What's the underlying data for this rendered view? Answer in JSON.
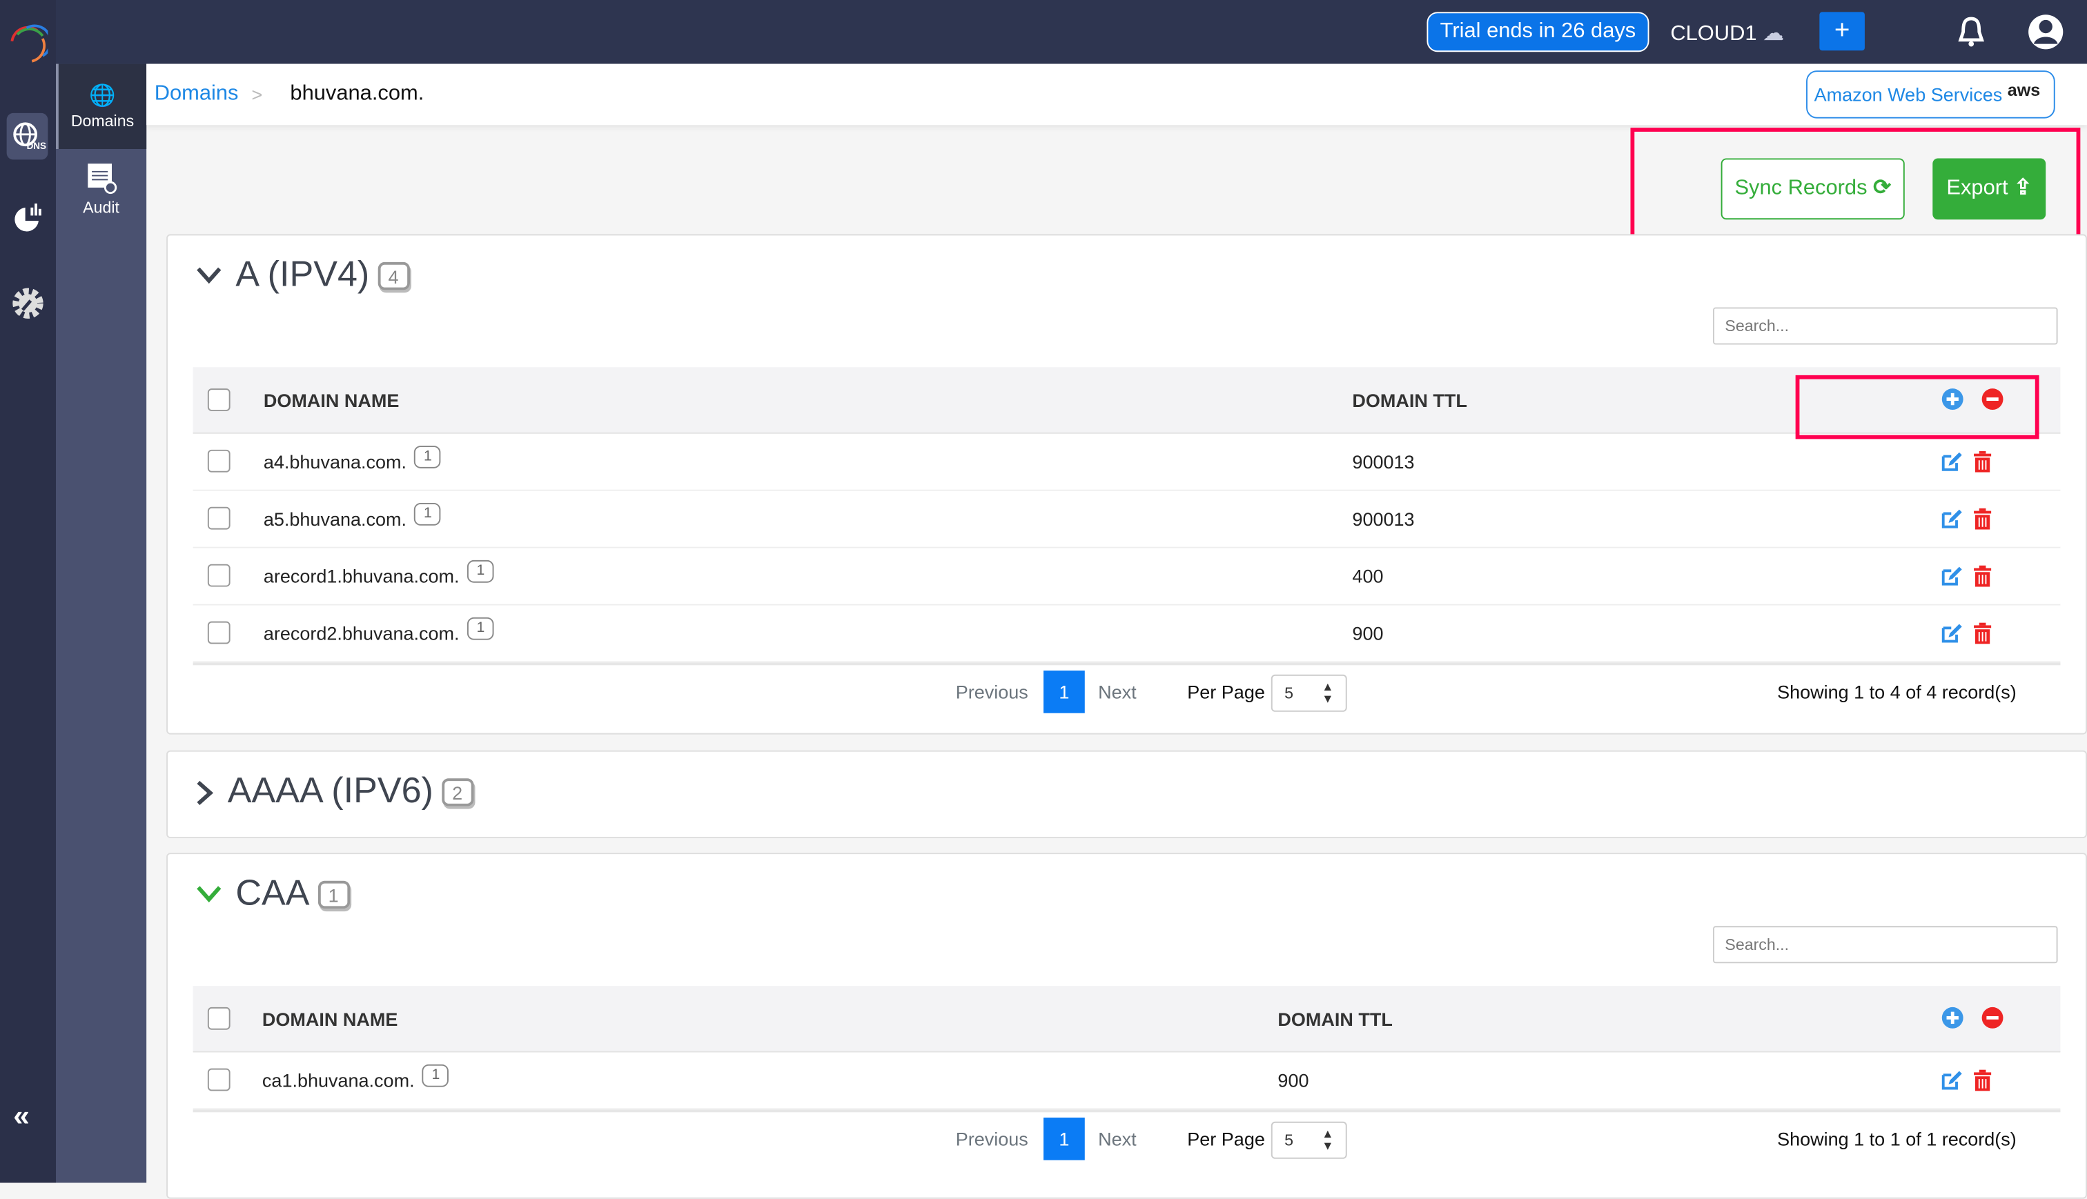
{
  "topbar": {
    "trial": "Trial ends in 26 days",
    "cloud": "CLOUD1",
    "add": "+"
  },
  "colors": {
    "topbar": "#2e3550",
    "primary": "#0b74e8",
    "success": "#34ad3a",
    "danger": "#ee2424",
    "highlight": "#ff0050"
  },
  "rail": {
    "items": [
      "dns-icon",
      "analytics-icon",
      "settings-icon"
    ],
    "collapse": "«"
  },
  "sidebar": {
    "items": [
      {
        "label": "Domains",
        "icon": "globe-com-icon"
      },
      {
        "label": "Audit",
        "icon": "audit-icon"
      }
    ]
  },
  "breadcrumb": {
    "root": "Domains",
    "sep": ">",
    "current": "bhuvana.com.",
    "provider": "Amazon Web Services",
    "provider_logo": "aws"
  },
  "actions": {
    "sync": "Sync Records",
    "export": "Export"
  },
  "sections": [
    {
      "title": "A (IPV4)",
      "count": "4",
      "expanded": true,
      "search_placeholder": "Search...",
      "columns": [
        "DOMAIN NAME",
        "DOMAIN TTL"
      ],
      "rows": [
        {
          "name": "a4.bhuvana.com.",
          "n": "1",
          "ttl": "900013"
        },
        {
          "name": "a5.bhuvana.com.",
          "n": "1",
          "ttl": "900013"
        },
        {
          "name": "arecord1.bhuvana.com.",
          "n": "1",
          "ttl": "400"
        },
        {
          "name": "arecord2.bhuvana.com.",
          "n": "1",
          "ttl": "900"
        }
      ],
      "pagination": {
        "prev": "Previous",
        "page": "1",
        "next": "Next",
        "per_page_label": "Per Page",
        "per_page": "5",
        "showing": "Showing 1 to 4 of 4 record(s)"
      }
    },
    {
      "title": "AAAA (IPV6)",
      "count": "2",
      "expanded": false
    },
    {
      "title": "CAA",
      "count": "1",
      "expanded": true,
      "search_placeholder": "Search...",
      "columns": [
        "DOMAIN NAME",
        "DOMAIN TTL"
      ],
      "rows": [
        {
          "name": "ca1.bhuvana.com.",
          "n": "1",
          "ttl": "900"
        }
      ],
      "pagination": {
        "prev": "Previous",
        "page": "1",
        "next": "Next",
        "per_page_label": "Per Page",
        "per_page": "5",
        "showing": "Showing 1 to 1 of 1 record(s)"
      }
    }
  ]
}
